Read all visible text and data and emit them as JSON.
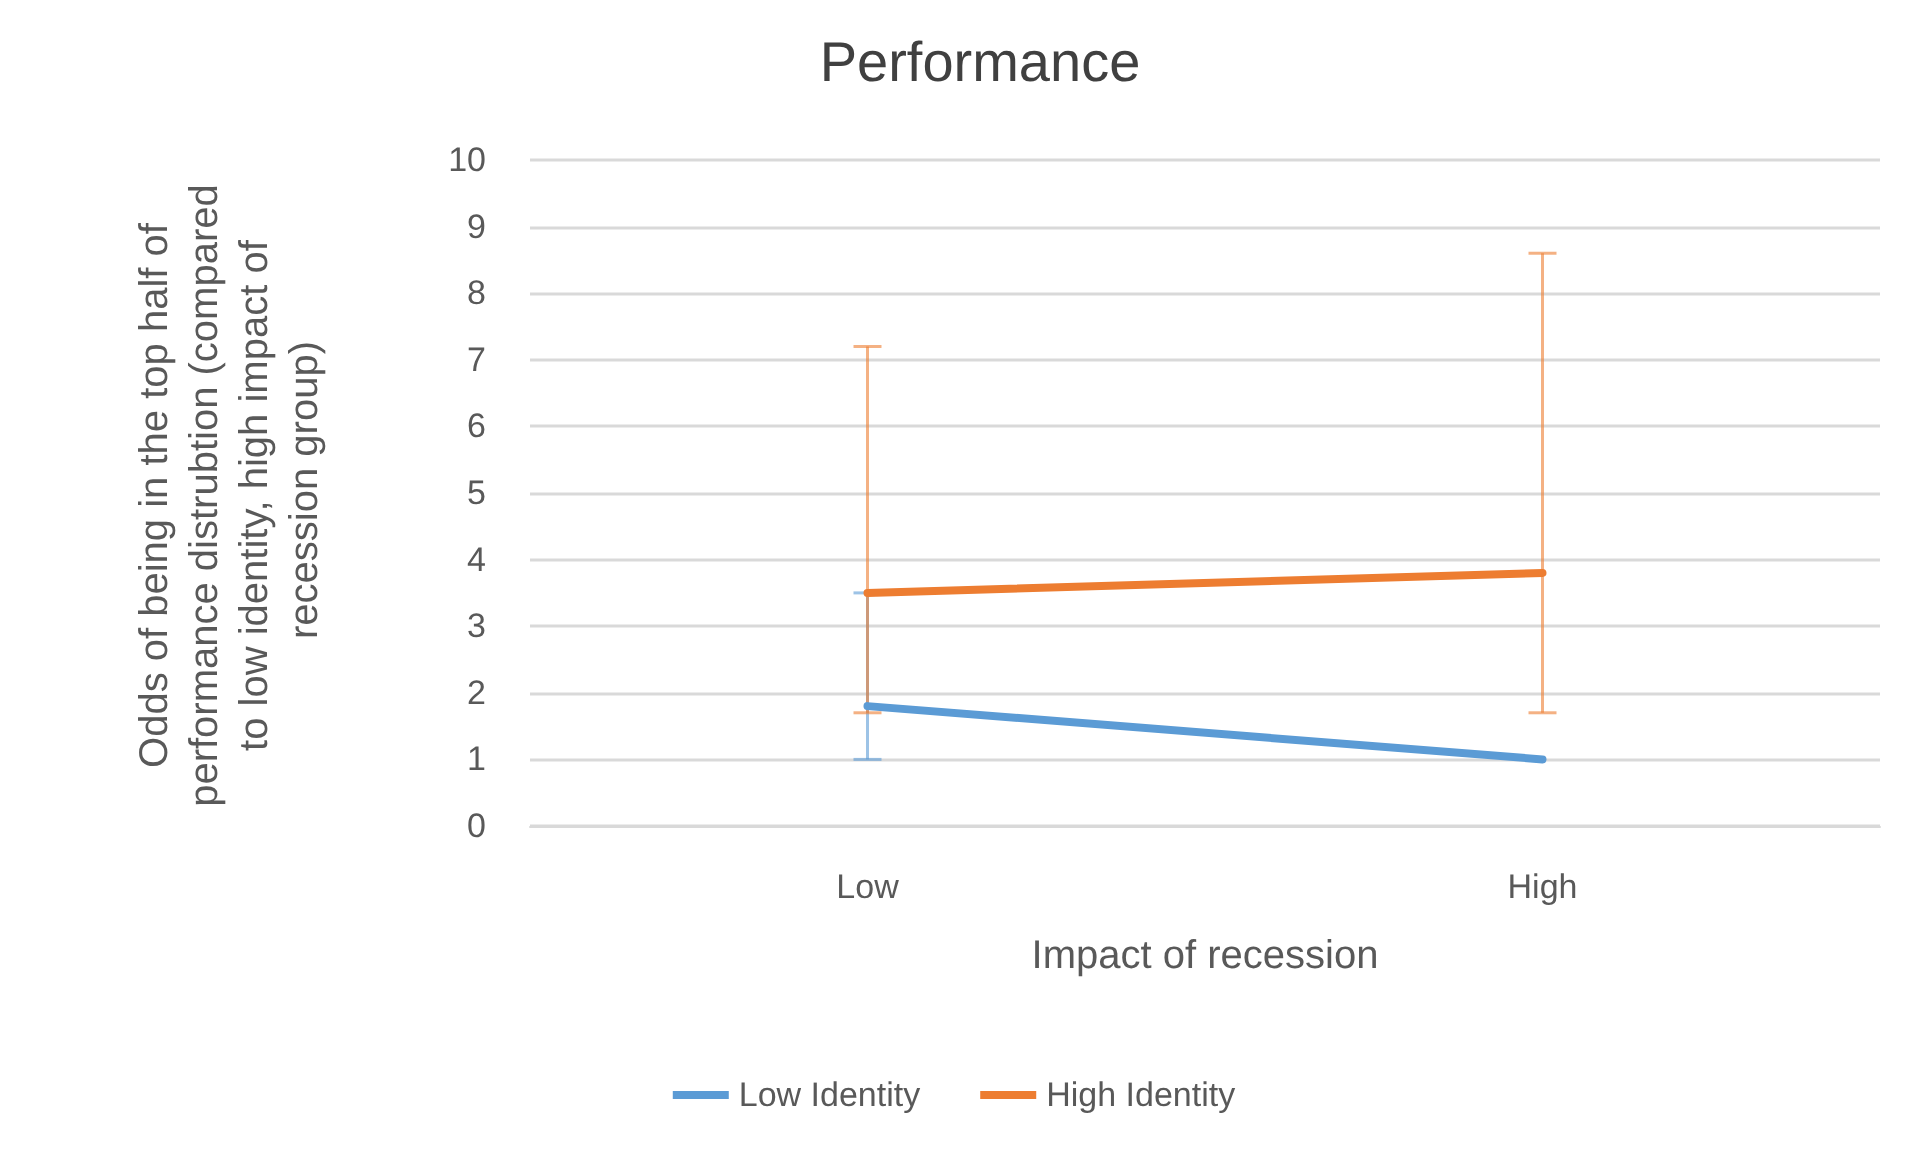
{
  "chart_data": {
    "type": "line",
    "title": "Performance",
    "xlabel": "Impact of recession",
    "ylabel": "Odds of being in the top half of performance distrubtion (compared to low identity, high impact of recession group)",
    "categories": [
      "Low",
      "High"
    ],
    "series": [
      {
        "name": "Low Identity",
        "color": "#5b9bd5",
        "values": [
          1.8,
          1.0
        ],
        "errors": [
          [
            1.0,
            3.5
          ],
          null
        ]
      },
      {
        "name": "High Identity",
        "color": "#ed7d31",
        "values": [
          3.5,
          3.8
        ],
        "errors": [
          [
            1.7,
            7.2
          ],
          [
            1.7,
            8.6
          ]
        ]
      }
    ],
    "ylim": [
      0,
      10
    ],
    "yticks": [
      0,
      1,
      2,
      3,
      4,
      5,
      6,
      7,
      8,
      9,
      10
    ],
    "grid": "y",
    "legend": "bottom",
    "marker": "none",
    "line_style": "solid"
  }
}
